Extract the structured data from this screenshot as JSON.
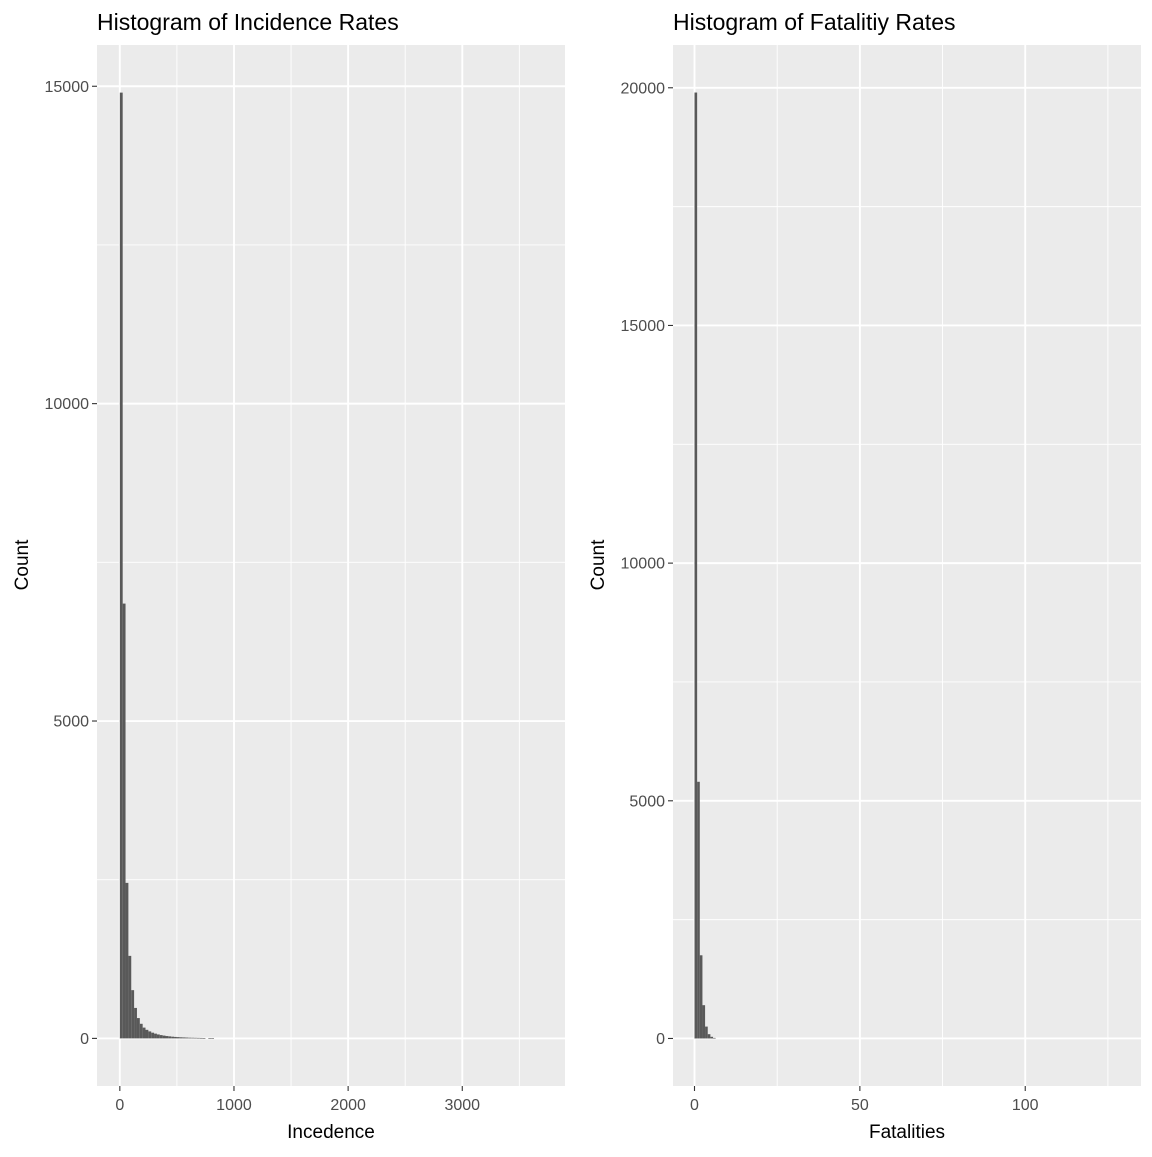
{
  "chart_data": [
    {
      "type": "bar",
      "title": "Histogram of Incidence Rates",
      "xlabel": "Incedence",
      "ylabel": "Count",
      "xlim": [
        -200,
        3900
      ],
      "ylim": [
        -750,
        15650
      ],
      "xticks": [
        0,
        1000,
        2000,
        3000
      ],
      "xtick_labels": [
        "0",
        "1000",
        "2000",
        "3000"
      ],
      "xminor": [
        500,
        1500,
        2500,
        3500
      ],
      "yticks": [
        0,
        5000,
        10000,
        15000
      ],
      "ytick_labels": [
        "0",
        "5000",
        "10000",
        "15000"
      ],
      "yminor": [
        2500,
        7500,
        12500
      ],
      "grid": true,
      "panel_color": "#ebebeb",
      "bar_color": "#595959",
      "bins": [
        {
          "x0": 0,
          "x1": 25,
          "count": 14900
        },
        {
          "x0": 25,
          "x1": 50,
          "count": 6850
        },
        {
          "x0": 50,
          "x1": 75,
          "count": 2450
        },
        {
          "x0": 75,
          "x1": 100,
          "count": 1300
        },
        {
          "x0": 100,
          "x1": 125,
          "count": 760
        },
        {
          "x0": 125,
          "x1": 150,
          "count": 480
        },
        {
          "x0": 150,
          "x1": 175,
          "count": 320
        },
        {
          "x0": 175,
          "x1": 200,
          "count": 230
        },
        {
          "x0": 200,
          "x1": 225,
          "count": 170
        },
        {
          "x0": 225,
          "x1": 250,
          "count": 135
        },
        {
          "x0": 250,
          "x1": 275,
          "count": 110
        },
        {
          "x0": 275,
          "x1": 300,
          "count": 90
        },
        {
          "x0": 300,
          "x1": 325,
          "count": 75
        },
        {
          "x0": 325,
          "x1": 350,
          "count": 62
        },
        {
          "x0": 350,
          "x1": 375,
          "count": 52
        },
        {
          "x0": 375,
          "x1": 400,
          "count": 44
        },
        {
          "x0": 400,
          "x1": 425,
          "count": 37
        },
        {
          "x0": 425,
          "x1": 450,
          "count": 32
        },
        {
          "x0": 450,
          "x1": 475,
          "count": 27
        },
        {
          "x0": 475,
          "x1": 500,
          "count": 23
        },
        {
          "x0": 500,
          "x1": 525,
          "count": 20
        },
        {
          "x0": 525,
          "x1": 550,
          "count": 17
        },
        {
          "x0": 550,
          "x1": 575,
          "count": 15
        },
        {
          "x0": 575,
          "x1": 600,
          "count": 13
        },
        {
          "x0": 600,
          "x1": 625,
          "count": 11
        },
        {
          "x0": 625,
          "x1": 650,
          "count": 10
        },
        {
          "x0": 650,
          "x1": 675,
          "count": 9
        },
        {
          "x0": 675,
          "x1": 700,
          "count": 8
        },
        {
          "x0": 700,
          "x1": 725,
          "count": 7
        },
        {
          "x0": 725,
          "x1": 750,
          "count": 6
        },
        {
          "x0": 775,
          "x1": 800,
          "count": 5
        },
        {
          "x0": 800,
          "x1": 825,
          "count": 4
        }
      ]
    },
    {
      "type": "bar",
      "title": "Histogram of Fatalitiy Rates",
      "xlabel": "Fatalities",
      "ylabel": "Count",
      "xlim": [
        -6.5,
        135
      ],
      "ylim": [
        -1000,
        20900
      ],
      "xticks": [
        0,
        50,
        100
      ],
      "xtick_labels": [
        "0",
        "50",
        "100"
      ],
      "xminor": [
        25,
        75,
        125
      ],
      "yticks": [
        0,
        5000,
        10000,
        15000,
        20000
      ],
      "ytick_labels": [
        "0",
        "5000",
        "10000",
        "15000",
        "20000"
      ],
      "yminor": [
        2500,
        7500,
        12500,
        17500
      ],
      "grid": true,
      "panel_color": "#ebebeb",
      "bar_color": "#595959",
      "bins": [
        {
          "x0": 0,
          "x1": 0.8,
          "count": 19900
        },
        {
          "x0": 0.8,
          "x1": 1.6,
          "count": 5400
        },
        {
          "x0": 1.6,
          "x1": 2.4,
          "count": 1750
        },
        {
          "x0": 2.4,
          "x1": 3.2,
          "count": 700
        },
        {
          "x0": 3.2,
          "x1": 4.0,
          "count": 250
        },
        {
          "x0": 4.0,
          "x1": 4.8,
          "count": 90
        },
        {
          "x0": 4.8,
          "x1": 5.6,
          "count": 35
        },
        {
          "x0": 5.6,
          "x1": 6.4,
          "count": 12
        }
      ]
    }
  ]
}
